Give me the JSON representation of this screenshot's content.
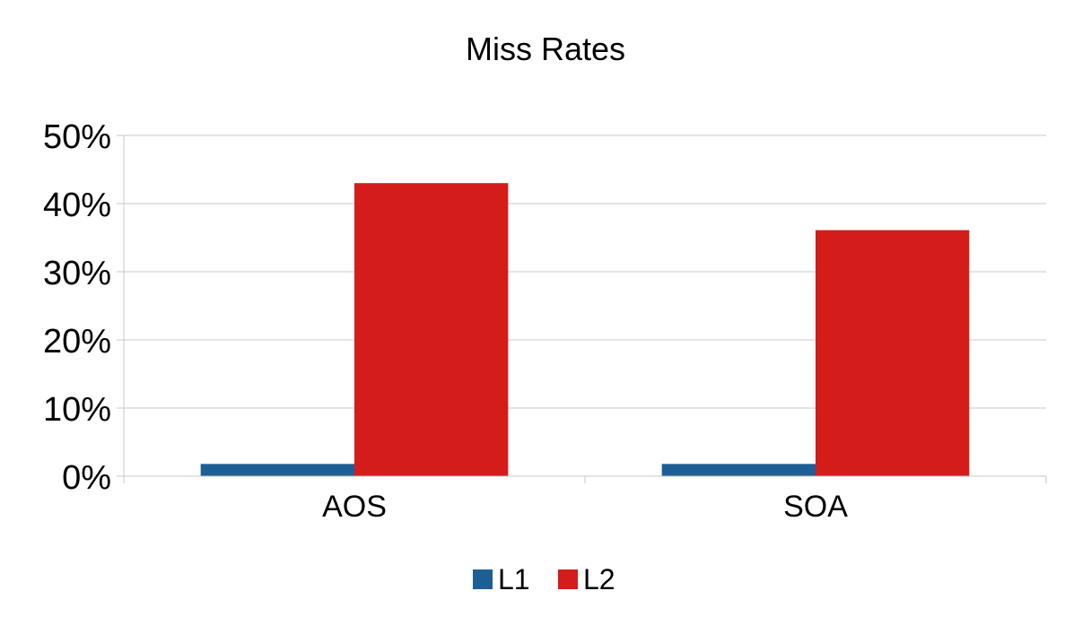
{
  "chart_data": {
    "type": "bar",
    "title": "Miss Rates",
    "categories": [
      "AOS",
      "SOA"
    ],
    "series": [
      {
        "name": "L1",
        "color": "#1d5f95",
        "values": [
          1.8,
          1.8
        ]
      },
      {
        "name": "L2",
        "color": "#d41c1b",
        "values": [
          43,
          36.1
        ]
      }
    ],
    "yticks": [
      "0%",
      "10%",
      "20%",
      "30%",
      "40%",
      "50%"
    ],
    "ylim": [
      0,
      50
    ],
    "yunit": "%",
    "grid": true,
    "legend": "bottom",
    "gridColor": "#c8c8c8"
  }
}
